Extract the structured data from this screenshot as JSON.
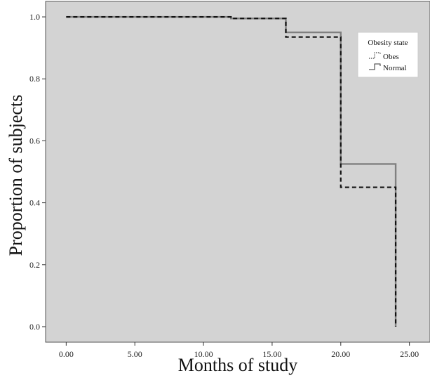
{
  "chart_data": {
    "type": "line",
    "xlabel": "Months of study",
    "ylabel": "Proportion of subjects",
    "xlim": [
      -1.5,
      26.5
    ],
    "ylim": [
      -0.05,
      1.05
    ],
    "x_ticks": [
      0,
      5,
      10,
      15,
      20,
      25
    ],
    "x_tick_labels": [
      "0.00",
      "5.00",
      "10.00",
      "15.00",
      "20.00",
      "25.00"
    ],
    "y_ticks": [
      0,
      0.2,
      0.4,
      0.6,
      0.8,
      1.0
    ],
    "y_tick_labels": [
      "0.0",
      "0.2",
      "0.4",
      "0.6",
      "0.8",
      "1.0"
    ],
    "grid": false,
    "legend": {
      "title": "Obesity state",
      "placement": "top-right"
    },
    "series": [
      {
        "name": "Normal",
        "style": "solid",
        "color": "#808080",
        "x": [
          0,
          12,
          16,
          20,
          24,
          24
        ],
        "y": [
          1.0,
          0.995,
          0.95,
          0.525,
          0.525,
          0.0
        ]
      },
      {
        "name": "Obes",
        "style": "dashed",
        "color": "#111111",
        "x": [
          0,
          12,
          16,
          20,
          24,
          24
        ],
        "y": [
          1.0,
          0.995,
          0.935,
          0.45,
          0.45,
          0.0
        ]
      }
    ],
    "background_color": "#d3d3d3"
  }
}
